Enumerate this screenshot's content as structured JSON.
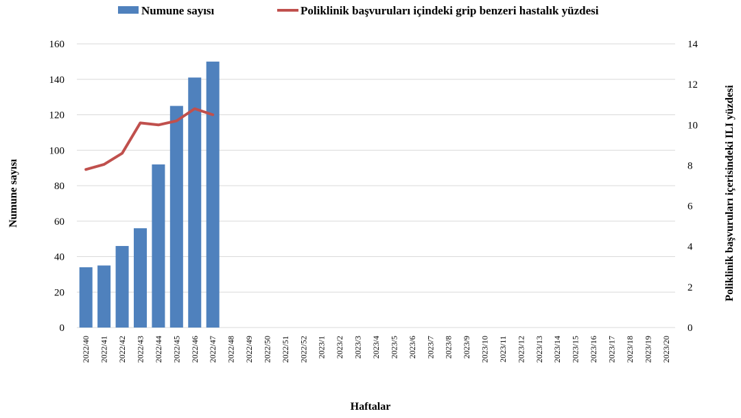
{
  "chart_data": {
    "type": "bar",
    "categories": [
      "2022/40",
      "2022/41",
      "2022/42",
      "2022/43",
      "2022/44",
      "2022/45",
      "2022/46",
      "2022/47",
      "2022/48",
      "2022/49",
      "2022/50",
      "2022/51",
      "2022/52",
      "2023/1",
      "2023/2",
      "2023/3",
      "2023/4",
      "2023/5",
      "2023/6",
      "2023/7",
      "2023/8",
      "2023/9",
      "2023/10",
      "2023/11",
      "2023/12",
      "2023/13",
      "2023/14",
      "2023/15",
      "2023/16",
      "2023/17",
      "2023/18",
      "2023/19",
      "2023/20"
    ],
    "series": [
      {
        "name": "Numune sayısı",
        "type": "bar",
        "axis": "left",
        "color": "#4f81bd",
        "values": [
          34,
          35,
          46,
          56,
          92,
          125,
          141,
          150,
          null,
          null,
          null,
          null,
          null,
          null,
          null,
          null,
          null,
          null,
          null,
          null,
          null,
          null,
          null,
          null,
          null,
          null,
          null,
          null,
          null,
          null,
          null,
          null,
          null
        ]
      },
      {
        "name": "Poliklinik başvuruları içindeki grip benzeri hastalık yüzdesi",
        "type": "line",
        "axis": "right",
        "color": "#c0504d",
        "values": [
          7.8,
          8.05,
          8.6,
          10.1,
          10.0,
          10.2,
          10.8,
          10.5,
          null,
          null,
          null,
          null,
          null,
          null,
          null,
          null,
          null,
          null,
          null,
          null,
          null,
          null,
          null,
          null,
          null,
          null,
          null,
          null,
          null,
          null,
          null,
          null,
          null
        ]
      }
    ],
    "xlabel": "Haftalar",
    "ylabel": "Numune sayısı",
    "y2label": "Poliklinik başvuruları içerisindeki ILI yüzdesi",
    "ylim": [
      0,
      160
    ],
    "yticks": [
      0,
      20,
      40,
      60,
      80,
      100,
      120,
      140,
      160
    ],
    "y2lim": [
      0,
      14
    ],
    "y2ticks": [
      0,
      2,
      4,
      6,
      8,
      10,
      12,
      14
    ],
    "grid": true,
    "legend": "top"
  }
}
